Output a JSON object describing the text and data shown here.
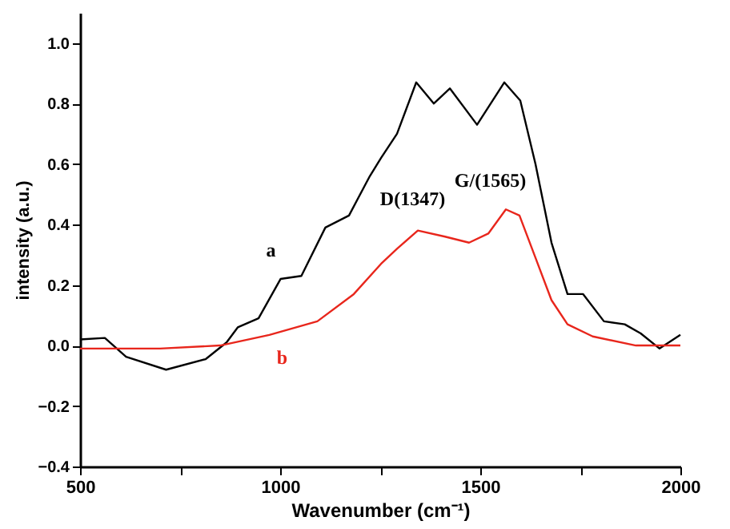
{
  "chart_data": {
    "type": "line",
    "xlabel": "Wavenumber (cm⁻¹)",
    "ylabel": "intensity (a.u.)",
    "xlim": [
      500,
      2000
    ],
    "xticks": [
      500,
      {
        "value": 750,
        "label": null
      },
      {
        "value": 1000,
        "label": "1000"
      },
      {
        "value": 1250,
        "label": null
      },
      {
        "value": 1500,
        "label": "1500"
      },
      {
        "value": 1750,
        "label": null
      },
      {
        "value": 2000,
        "label": "2000"
      }
    ],
    "ylim": [
      -0.4,
      1.1
    ],
    "yticks": [
      -0.4,
      -0.2,
      {
        "value": 0,
        "label": "0.0"
      },
      0.2,
      0.4,
      0.6,
      0.8,
      {
        "value": 1,
        "label": "1.0"
      }
    ],
    "grid": false,
    "marker": "none",
    "line_style": "solid",
    "series": [
      {
        "color": "#000000",
        "x": [
          500,
          562,
          615,
          715,
          814,
          866,
          894,
          946,
          1001,
          1053,
          1113,
          1172,
          1224,
          1252,
          1292,
          1340,
          1384,
          1424,
          1492,
          1560,
          1600,
          1638,
          1678,
          1718,
          1757,
          1809,
          1861,
          1901,
          1948,
          2000
        ],
        "values": [
          0.02,
          0.025,
          -0.037,
          -0.08,
          -0.045,
          0.01,
          0.06,
          0.09,
          0.22,
          0.23,
          0.39,
          0.43,
          0.56,
          0.62,
          0.7,
          0.87,
          0.8,
          0.85,
          0.73,
          0.87,
          0.81,
          0.6,
          0.34,
          0.17,
          0.17,
          0.08,
          0.07,
          0.04,
          -0.01,
          0.035
        ]
      },
      {
        "color": "#e8261c",
        "x": [
          500,
          700,
          850,
          973,
          1093,
          1184,
          1252,
          1292,
          1344,
          1412,
          1472,
          1520,
          1564,
          1598,
          1638,
          1678,
          1718,
          1781,
          1889,
          2000
        ],
        "values": [
          -0.01,
          -0.01,
          0.0,
          0.035,
          0.08,
          0.17,
          0.27,
          0.32,
          0.38,
          0.36,
          0.34,
          0.37,
          0.45,
          0.43,
          0.29,
          0.15,
          0.07,
          0.03,
          0.0,
          0.0
        ]
      }
    ],
    "annotations": [
      {
        "text": "a",
        "x": 1001,
        "y": 0.22
      },
      {
        "text": "b",
        "x": 973,
        "y": 0.035
      },
      {
        "text": "D(1347)",
        "x": 1347,
        "y": 0.38
      },
      {
        "text": "G/(1565)",
        "x": 1565,
        "y": 0.45
      }
    ]
  }
}
